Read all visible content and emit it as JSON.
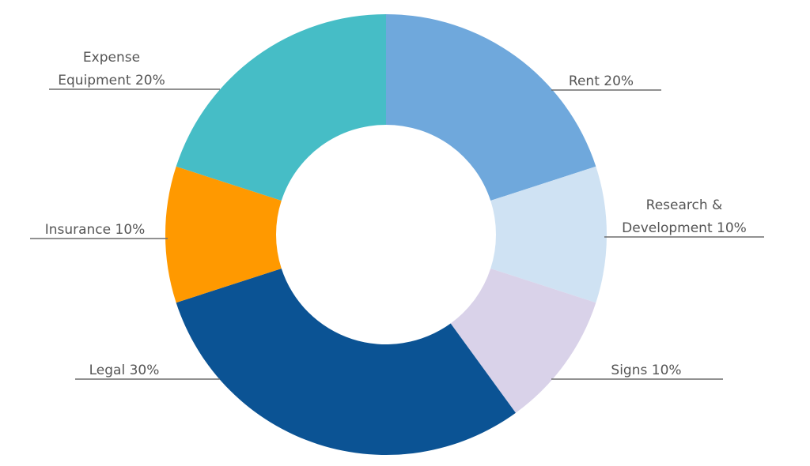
{
  "chart_data": {
    "type": "pie",
    "variant": "donut",
    "title": "",
    "legend": "none",
    "slices": [
      {
        "label": "Rent",
        "value": 20,
        "display": "Rent 20%",
        "color": "#6fa8dc"
      },
      {
        "label": "Research & Development",
        "value": 10,
        "display": "Development 10%",
        "display_pre": "Research &",
        "color": "#cfe2f3"
      },
      {
        "label": "Signs",
        "value": 10,
        "display": "Signs 10%",
        "color": "#d9d2e9"
      },
      {
        "label": "Legal",
        "value": 30,
        "display": "Legal 30%",
        "color": "#0b5394"
      },
      {
        "label": "Insurance",
        "value": 10,
        "display": "Insurance 10%",
        "color": "#ff9900"
      },
      {
        "label": "Expense Equipment",
        "value": 20,
        "display": "Equipment 20%",
        "display_pre": "Expense",
        "color": "#46bdc6"
      }
    ]
  }
}
